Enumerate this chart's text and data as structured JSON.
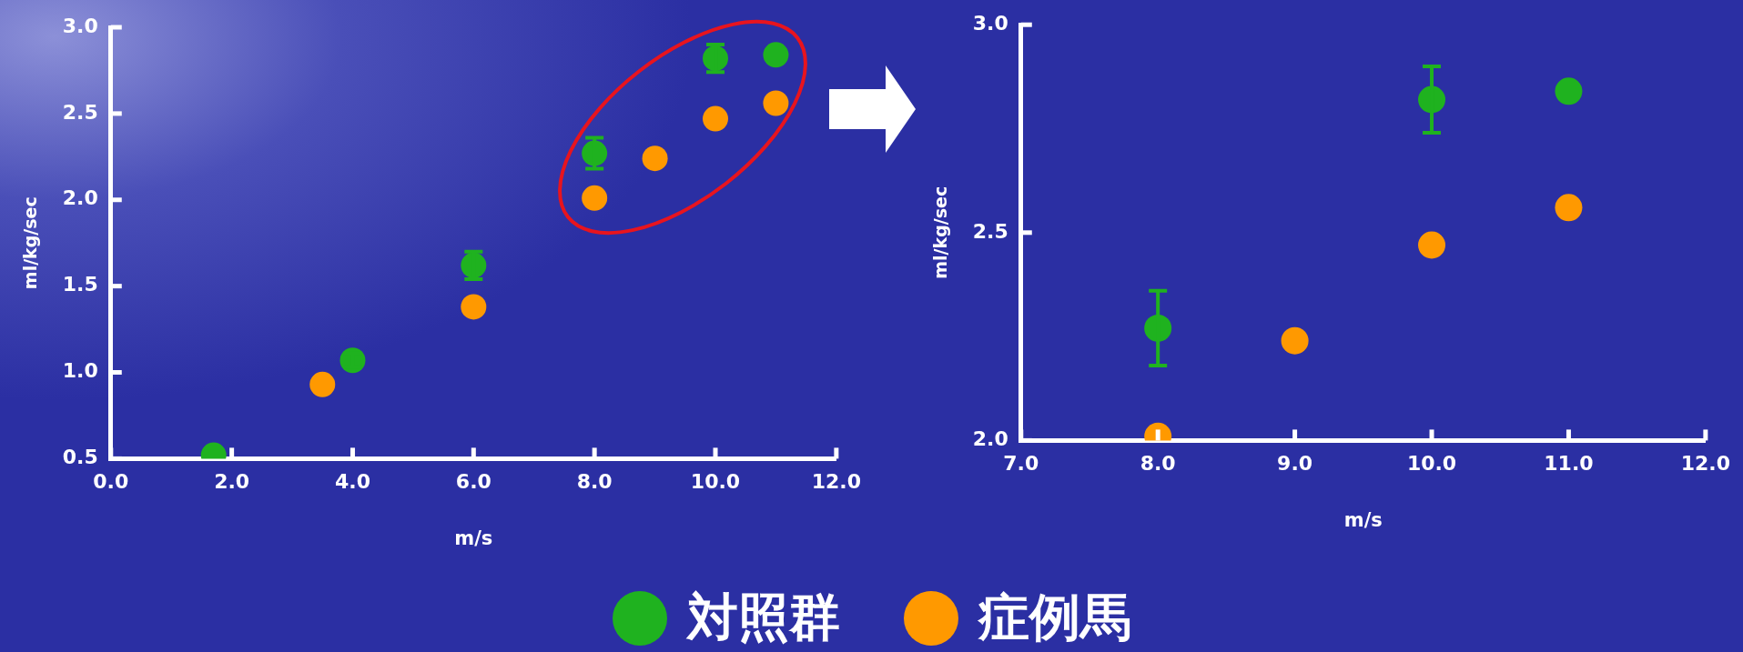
{
  "chart_data": [
    {
      "type": "scatter",
      "xlabel": "m/s",
      "ylabel": "ml/kg/sec",
      "xlim": [
        0,
        12
      ],
      "ylim": [
        0.5,
        3.0
      ],
      "xticks": [
        {
          "value": 0,
          "label": "0.0"
        },
        {
          "value": 2,
          "label": "2.0"
        },
        {
          "value": 4,
          "label": "4.0"
        },
        {
          "value": 6,
          "label": "6.0"
        },
        {
          "value": 8,
          "label": "8.0"
        },
        {
          "value": 10,
          "label": "10.0"
        },
        {
          "value": 12,
          "label": "12.0"
        }
      ],
      "yticks": [
        {
          "value": 0.5,
          "label": "0.5"
        },
        {
          "value": 1,
          "label": "1.0"
        },
        {
          "value": 1.5,
          "label": "1.5"
        },
        {
          "value": 2,
          "label": "2.0"
        },
        {
          "value": 2.5,
          "label": "2.5"
        },
        {
          "value": 3,
          "label": "3.0"
        }
      ],
      "grid": false,
      "legend": "bottom",
      "marker": "circle",
      "series": [
        {
          "name": "対照群",
          "color": "#1fb21f",
          "x": [
            1.7,
            4,
            6,
            8,
            10,
            11
          ],
          "values": [
            0.52,
            1.07,
            1.62,
            2.27,
            2.82,
            2.84
          ],
          "errors": [
            null,
            0.04,
            0.08,
            0.09,
            0.08,
            null
          ]
        },
        {
          "name": "症例馬",
          "color": "#ff9900",
          "x": [
            3.5,
            6,
            8,
            9,
            10,
            11
          ],
          "values": [
            0.93,
            1.38,
            2.01,
            2.24,
            2.47,
            2.56
          ]
        }
      ]
    },
    {
      "type": "scatter",
      "xlabel": "m/s",
      "ylabel": "ml/kg/sec",
      "xlim": [
        7,
        12
      ],
      "ylim": [
        2.0,
        3.0
      ],
      "xticks": [
        {
          "value": 7,
          "label": "7.0"
        },
        {
          "value": 8,
          "label": "8.0"
        },
        {
          "value": 9,
          "label": "9.0"
        },
        {
          "value": 10,
          "label": "10.0"
        },
        {
          "value": 11,
          "label": "11.0"
        },
        {
          "value": 12,
          "label": "12.0"
        }
      ],
      "yticks": [
        {
          "value": 2,
          "label": "2.0"
        },
        {
          "value": 2.5,
          "label": "2.5"
        },
        {
          "value": 3,
          "label": "3.0"
        }
      ],
      "grid": false,
      "marker": "circle",
      "series": [
        {
          "color": "#1fb21f",
          "x": [
            8,
            10,
            11
          ],
          "values": [
            2.27,
            2.82,
            2.84
          ],
          "errors": [
            0.09,
            0.08,
            null
          ]
        },
        {
          "color": "#ff9900",
          "x": [
            8,
            9,
            10,
            11
          ],
          "values": [
            2.01,
            2.24,
            2.47,
            2.56
          ]
        }
      ]
    }
  ]
}
